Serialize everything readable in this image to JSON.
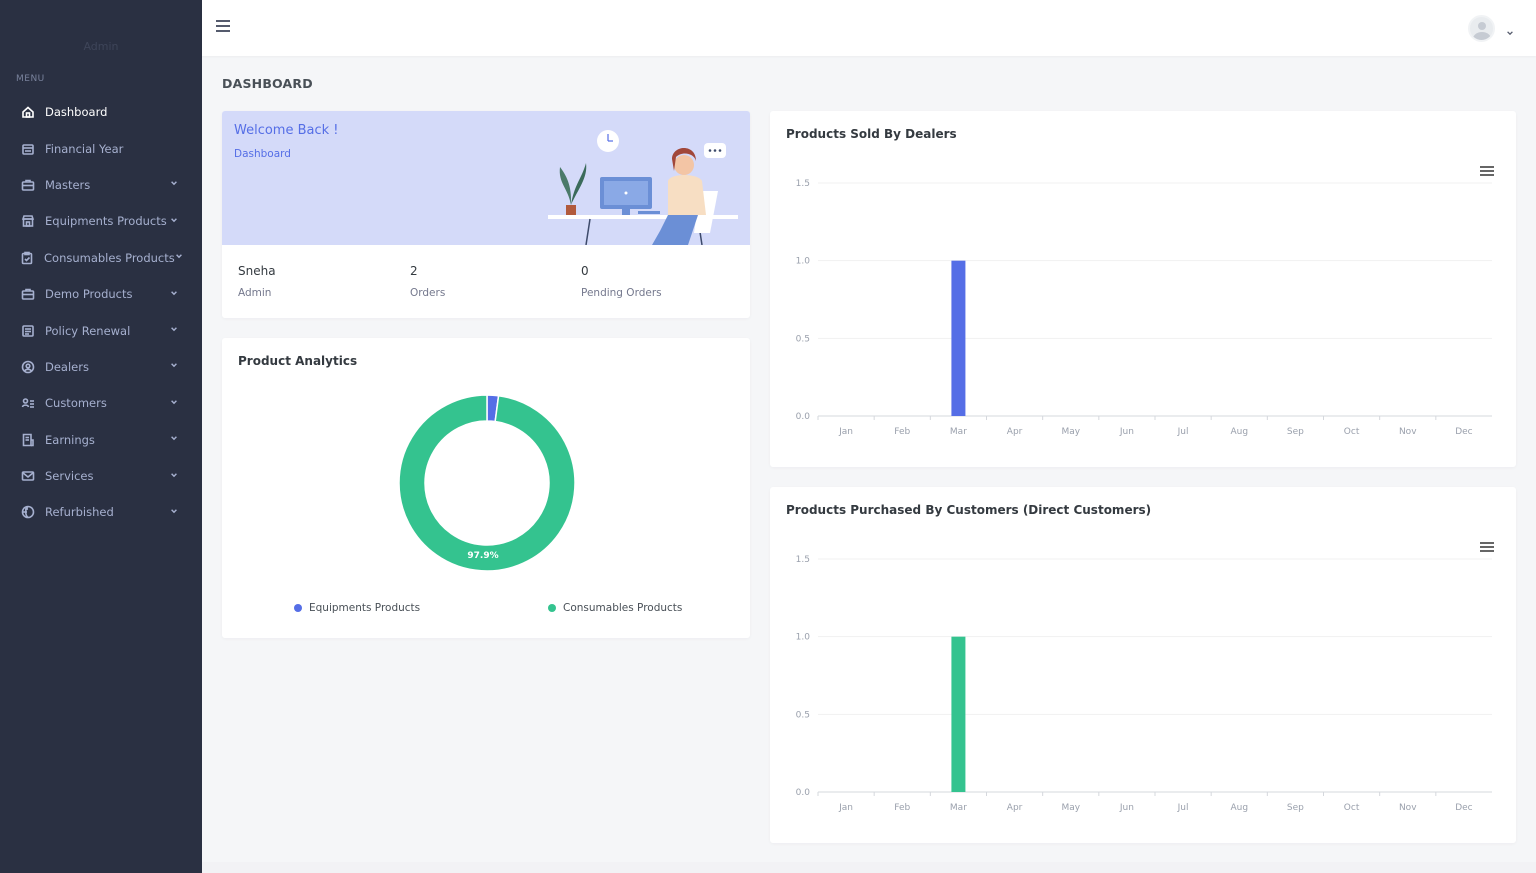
{
  "sidebar": {
    "brand": "Admin",
    "menu_title": "MENU",
    "items": [
      {
        "label": "Dashboard",
        "icon": "home-icon",
        "chevron": false,
        "active": true
      },
      {
        "label": "Financial Year",
        "icon": "calendar-icon",
        "chevron": false,
        "active": false
      },
      {
        "label": "Masters",
        "icon": "briefcase-icon",
        "chevron": true,
        "active": false
      },
      {
        "label": "Equipments Products",
        "icon": "store-icon",
        "chevron": true,
        "active": false
      },
      {
        "label": "Consumables Products",
        "icon": "clipboard-icon",
        "chevron": true,
        "active": false
      },
      {
        "label": "Demo Products",
        "icon": "briefcase-icon",
        "chevron": true,
        "active": false
      },
      {
        "label": "Policy Renewal",
        "icon": "document-icon",
        "chevron": true,
        "active": false
      },
      {
        "label": "Dealers",
        "icon": "user-circle-icon",
        "chevron": true,
        "active": false
      },
      {
        "label": "Customers",
        "icon": "user-list-icon",
        "chevron": true,
        "active": false
      },
      {
        "label": "Earnings",
        "icon": "receipt-icon",
        "chevron": true,
        "active": false
      },
      {
        "label": "Services",
        "icon": "envelope-icon",
        "chevron": true,
        "active": false
      },
      {
        "label": "Refurbished",
        "icon": "globe-icon",
        "chevron": true,
        "active": false
      }
    ]
  },
  "page": {
    "title": "DASHBOARD"
  },
  "welcome": {
    "title": "Welcome Back !",
    "subtitle": "Dashboard",
    "name": "Sneha",
    "role": "Admin",
    "orders_value": "2",
    "orders_label": "Orders",
    "pending_value": "0",
    "pending_label": "Pending Orders"
  },
  "analytics": {
    "title": "Product Analytics",
    "center_label": "97.9%",
    "legend": [
      "Equipments Products",
      "Consumables Products"
    ]
  },
  "colors": {
    "accent": "#556ee6",
    "green": "#34c38f",
    "sidebar": "#2a3042",
    "banner": "#d4daf9"
  },
  "chart_data": [
    {
      "type": "pie",
      "title": "Product Analytics",
      "categories": [
        "Equipments Products",
        "Consumables Products"
      ],
      "values": [
        2.1,
        97.9
      ],
      "colors": [
        "#556ee6",
        "#34c38f"
      ],
      "data_label": "97.9%"
    },
    {
      "type": "bar",
      "title": "Products Sold By Dealers",
      "categories": [
        "Jan",
        "Feb",
        "Mar",
        "Apr",
        "May",
        "Jun",
        "Jul",
        "Aug",
        "Sep",
        "Oct",
        "Nov",
        "Dec"
      ],
      "values": [
        0,
        0,
        1,
        0,
        0,
        0,
        0,
        0,
        0,
        0,
        0,
        0
      ],
      "ylim": [
        0,
        1.5
      ],
      "yticks": [
        "0.0",
        "0.5",
        "1.0",
        "1.5"
      ],
      "color": "#556ee6",
      "grid": true
    },
    {
      "type": "bar",
      "title": "Products Purchased By Customers (Direct Customers)",
      "categories": [
        "Jan",
        "Feb",
        "Mar",
        "Apr",
        "May",
        "Jun",
        "Jul",
        "Aug",
        "Sep",
        "Oct",
        "Nov",
        "Dec"
      ],
      "values": [
        0,
        0,
        1,
        0,
        0,
        0,
        0,
        0,
        0,
        0,
        0,
        0
      ],
      "ylim": [
        0,
        1.5
      ],
      "yticks": [
        "0.0",
        "0.5",
        "1.0",
        "1.5"
      ],
      "color": "#34c38f",
      "grid": true
    }
  ]
}
